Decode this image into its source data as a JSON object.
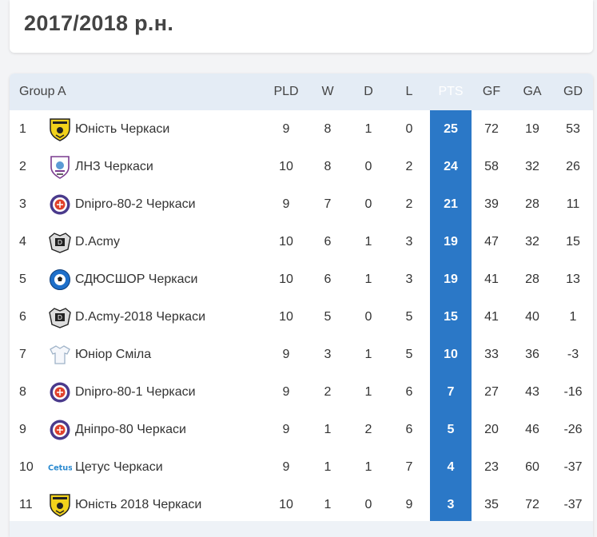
{
  "season": {
    "title": "2017/2018 р.н."
  },
  "standings": {
    "group_label": "Group A",
    "columns": {
      "pld": "PLD",
      "w": "W",
      "d": "D",
      "l": "L",
      "pts": "PTS",
      "gf": "GF",
      "ga": "GA",
      "gd": "GD"
    },
    "rows": [
      {
        "pos": "1",
        "team": "Юність Черкаси",
        "logo": "shield-yellow-icon",
        "pld": "9",
        "w": "8",
        "d": "1",
        "l": "0",
        "pts": "25",
        "gf": "72",
        "ga": "19",
        "gd": "53"
      },
      {
        "pos": "2",
        "team": "ЛНЗ Черкаси",
        "logo": "shield-lnz-icon",
        "pld": "10",
        "w": "8",
        "d": "0",
        "l": "2",
        "pts": "24",
        "gf": "58",
        "ga": "32",
        "gd": "26"
      },
      {
        "pos": "3",
        "team": "Dnipro-80-2 Черкаси",
        "logo": "dnipro-badge-icon",
        "pld": "9",
        "w": "7",
        "d": "0",
        "l": "2",
        "pts": "21",
        "gf": "39",
        "ga": "28",
        "gd": "11"
      },
      {
        "pos": "4",
        "team": "D.Acmy",
        "logo": "dacmy-badge-icon",
        "pld": "10",
        "w": "6",
        "d": "1",
        "l": "3",
        "pts": "19",
        "gf": "47",
        "ga": "32",
        "gd": "15"
      },
      {
        "pos": "5",
        "team": "СДЮСШОР Черкаси",
        "logo": "sdyushor-badge-icon",
        "pld": "10",
        "w": "6",
        "d": "1",
        "l": "3",
        "pts": "19",
        "gf": "41",
        "ga": "28",
        "gd": "13"
      },
      {
        "pos": "6",
        "team": "D.Acmy-2018 Черкаси",
        "logo": "dacmy-badge-icon",
        "pld": "10",
        "w": "5",
        "d": "0",
        "l": "5",
        "pts": "15",
        "gf": "41",
        "ga": "40",
        "gd": "1"
      },
      {
        "pos": "7",
        "team": "Юніор Сміла",
        "logo": "jersey-icon",
        "pld": "9",
        "w": "3",
        "d": "1",
        "l": "5",
        "pts": "10",
        "gf": "33",
        "ga": "36",
        "gd": "-3"
      },
      {
        "pos": "8",
        "team": "Dnipro-80-1 Черкаси",
        "logo": "dnipro-badge-icon",
        "pld": "9",
        "w": "2",
        "d": "1",
        "l": "6",
        "pts": "7",
        "gf": "27",
        "ga": "43",
        "gd": "-16"
      },
      {
        "pos": "9",
        "team": "Дніпро-80 Черкаси",
        "logo": "dnipro-badge-icon",
        "pld": "9",
        "w": "1",
        "d": "2",
        "l": "6",
        "pts": "5",
        "gf": "20",
        "ga": "46",
        "gd": "-26"
      },
      {
        "pos": "10",
        "team": "Цетус Черкаси",
        "logo": "cetus-logo-icon",
        "logo_text": "Cetus",
        "pld": "9",
        "w": "1",
        "d": "1",
        "l": "7",
        "pts": "4",
        "gf": "23",
        "ga": "60",
        "gd": "-37"
      },
      {
        "pos": "11",
        "team": "Юність 2018 Черкаси",
        "logo": "shield-yellow-icon",
        "pld": "10",
        "w": "1",
        "d": "0",
        "l": "9",
        "pts": "3",
        "gf": "35",
        "ga": "72",
        "gd": "-37"
      }
    ]
  },
  "colors": {
    "pts_band": "#2b78c7",
    "header_bg": "#e4ecf5",
    "page_bg": "#f3f4f6"
  }
}
